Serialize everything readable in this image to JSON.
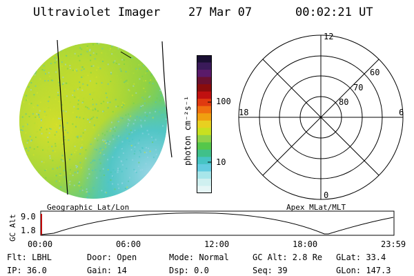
{
  "header": {
    "title": "Ultraviolet Imager",
    "date": "27 Mar 07",
    "time": "00:02:21 UT"
  },
  "colorbar": {
    "label": "photon cm⁻²s⁻¹",
    "ticks": [
      "100",
      "10"
    ],
    "colors": [
      "#1a0f33",
      "#3a1a5a",
      "#5a1a6a",
      "#6a1030",
      "#8a0c0c",
      "#c01010",
      "#e03a10",
      "#f07010",
      "#f0a010",
      "#e8d020",
      "#c8e020",
      "#8fd24a",
      "#55c74a",
      "#40c08a",
      "#46c4c4",
      "#64cce0",
      "#a8e6ea",
      "#d0f0f0",
      "#e6f6f6"
    ]
  },
  "polar": {
    "labels": {
      "top": "12",
      "bottom": "0",
      "left": "18",
      "right": "6"
    },
    "lat_labels": [
      "60",
      "70",
      "80"
    ]
  },
  "left_label": "Geographic Lat/Lon",
  "right_label": "Apex MLat/MLT",
  "altitude": {
    "axis_label": "GC Alt",
    "y_ticks": [
      "9.0",
      "1.8"
    ],
    "x_ticks": [
      "00:00",
      "06:00",
      "12:00",
      "18:00",
      "23:59"
    ]
  },
  "footer": {
    "filter": "Flt: LBHL",
    "ip": "IP: 36.0",
    "door": "Door: Open",
    "gain": "Gain: 14",
    "mode": "Mode: Normal",
    "dsp": "Dsp:    0.0",
    "gc_alt": "GC Alt: 2.8 Re",
    "seq": "Seq: 39",
    "glat": "GLat:  33.4",
    "glon": "GLon: 147.3"
  }
}
